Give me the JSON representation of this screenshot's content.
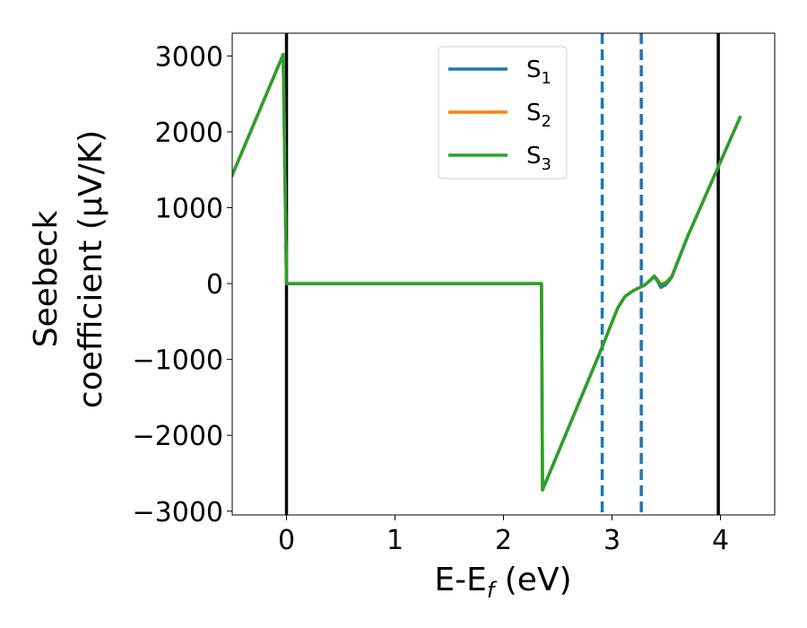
{
  "chart_data": {
    "type": "line",
    "title": "",
    "xlabel": "E-E",
    "xlabel_sub": "f",
    "xlabel_unit": " (eV)",
    "ylabel_line1": "Seebeck",
    "ylabel_line2": "coefficient  (μV/K)",
    "xlim": [
      -0.5,
      4.5
    ],
    "ylim": [
      -3050,
      3300
    ],
    "x_ticks": [
      0,
      1,
      2,
      3,
      4
    ],
    "x_tick_labels": [
      "0",
      "1",
      "2",
      "3",
      "4"
    ],
    "y_ticks": [
      -3000,
      -2000,
      -1000,
      0,
      1000,
      2000,
      3000
    ],
    "y_tick_labels": [
      "−3000",
      "−2000",
      "−1000",
      "0",
      "1000",
      "2000",
      "3000"
    ],
    "grid": false,
    "legend_position": "top-center",
    "vertical_lines": [
      {
        "x": 0.0,
        "style": "solid",
        "color": "#000000"
      },
      {
        "x": 3.98,
        "style": "solid",
        "color": "#000000"
      },
      {
        "x": 2.91,
        "style": "dashed",
        "color": "#1f77b4"
      },
      {
        "x": 3.27,
        "style": "dashed",
        "color": "#1f77b4"
      }
    ],
    "series": [
      {
        "name": "S",
        "sub": "1",
        "color": "#1f77b4",
        "x": [
          -0.5,
          -0.03,
          -0.03,
          0.0,
          2.35,
          2.35,
          2.36,
          2.9,
          3.05,
          3.12,
          3.2,
          3.3,
          3.35,
          3.39,
          3.42,
          3.45,
          3.5,
          3.55,
          3.7,
          4.18
        ],
        "y": [
          1430,
          3020,
          3020,
          0,
          0,
          0,
          -2720,
          -870,
          -330,
          -170,
          -90,
          -20,
          40,
          90,
          30,
          -50,
          -10,
          80,
          630,
          2190
        ]
      },
      {
        "name": "S",
        "sub": "2",
        "color": "#ff7f0e",
        "x": [
          -0.5,
          -0.03,
          -0.03,
          0.0,
          2.35,
          2.35,
          2.36,
          2.9,
          3.05,
          3.12,
          3.2,
          3.3,
          3.35,
          3.39,
          3.42,
          3.45,
          3.5,
          3.55,
          3.7,
          4.18
        ],
        "y": [
          1430,
          3020,
          3020,
          0,
          0,
          0,
          -2720,
          -870,
          -330,
          -170,
          -90,
          -20,
          40,
          100,
          50,
          -10,
          20,
          90,
          630,
          2190
        ]
      },
      {
        "name": "S",
        "sub": "3",
        "color": "#2ca02c",
        "x": [
          -0.5,
          -0.03,
          -0.03,
          0.0,
          2.35,
          2.35,
          2.36,
          2.9,
          3.05,
          3.12,
          3.2,
          3.3,
          3.35,
          3.39,
          3.42,
          3.45,
          3.5,
          3.55,
          3.7,
          4.18
        ],
        "y": [
          1430,
          3020,
          3020,
          0,
          0,
          0,
          -2720,
          -870,
          -330,
          -170,
          -90,
          -20,
          40,
          100,
          40,
          -20,
          10,
          90,
          630,
          2190
        ]
      }
    ]
  }
}
